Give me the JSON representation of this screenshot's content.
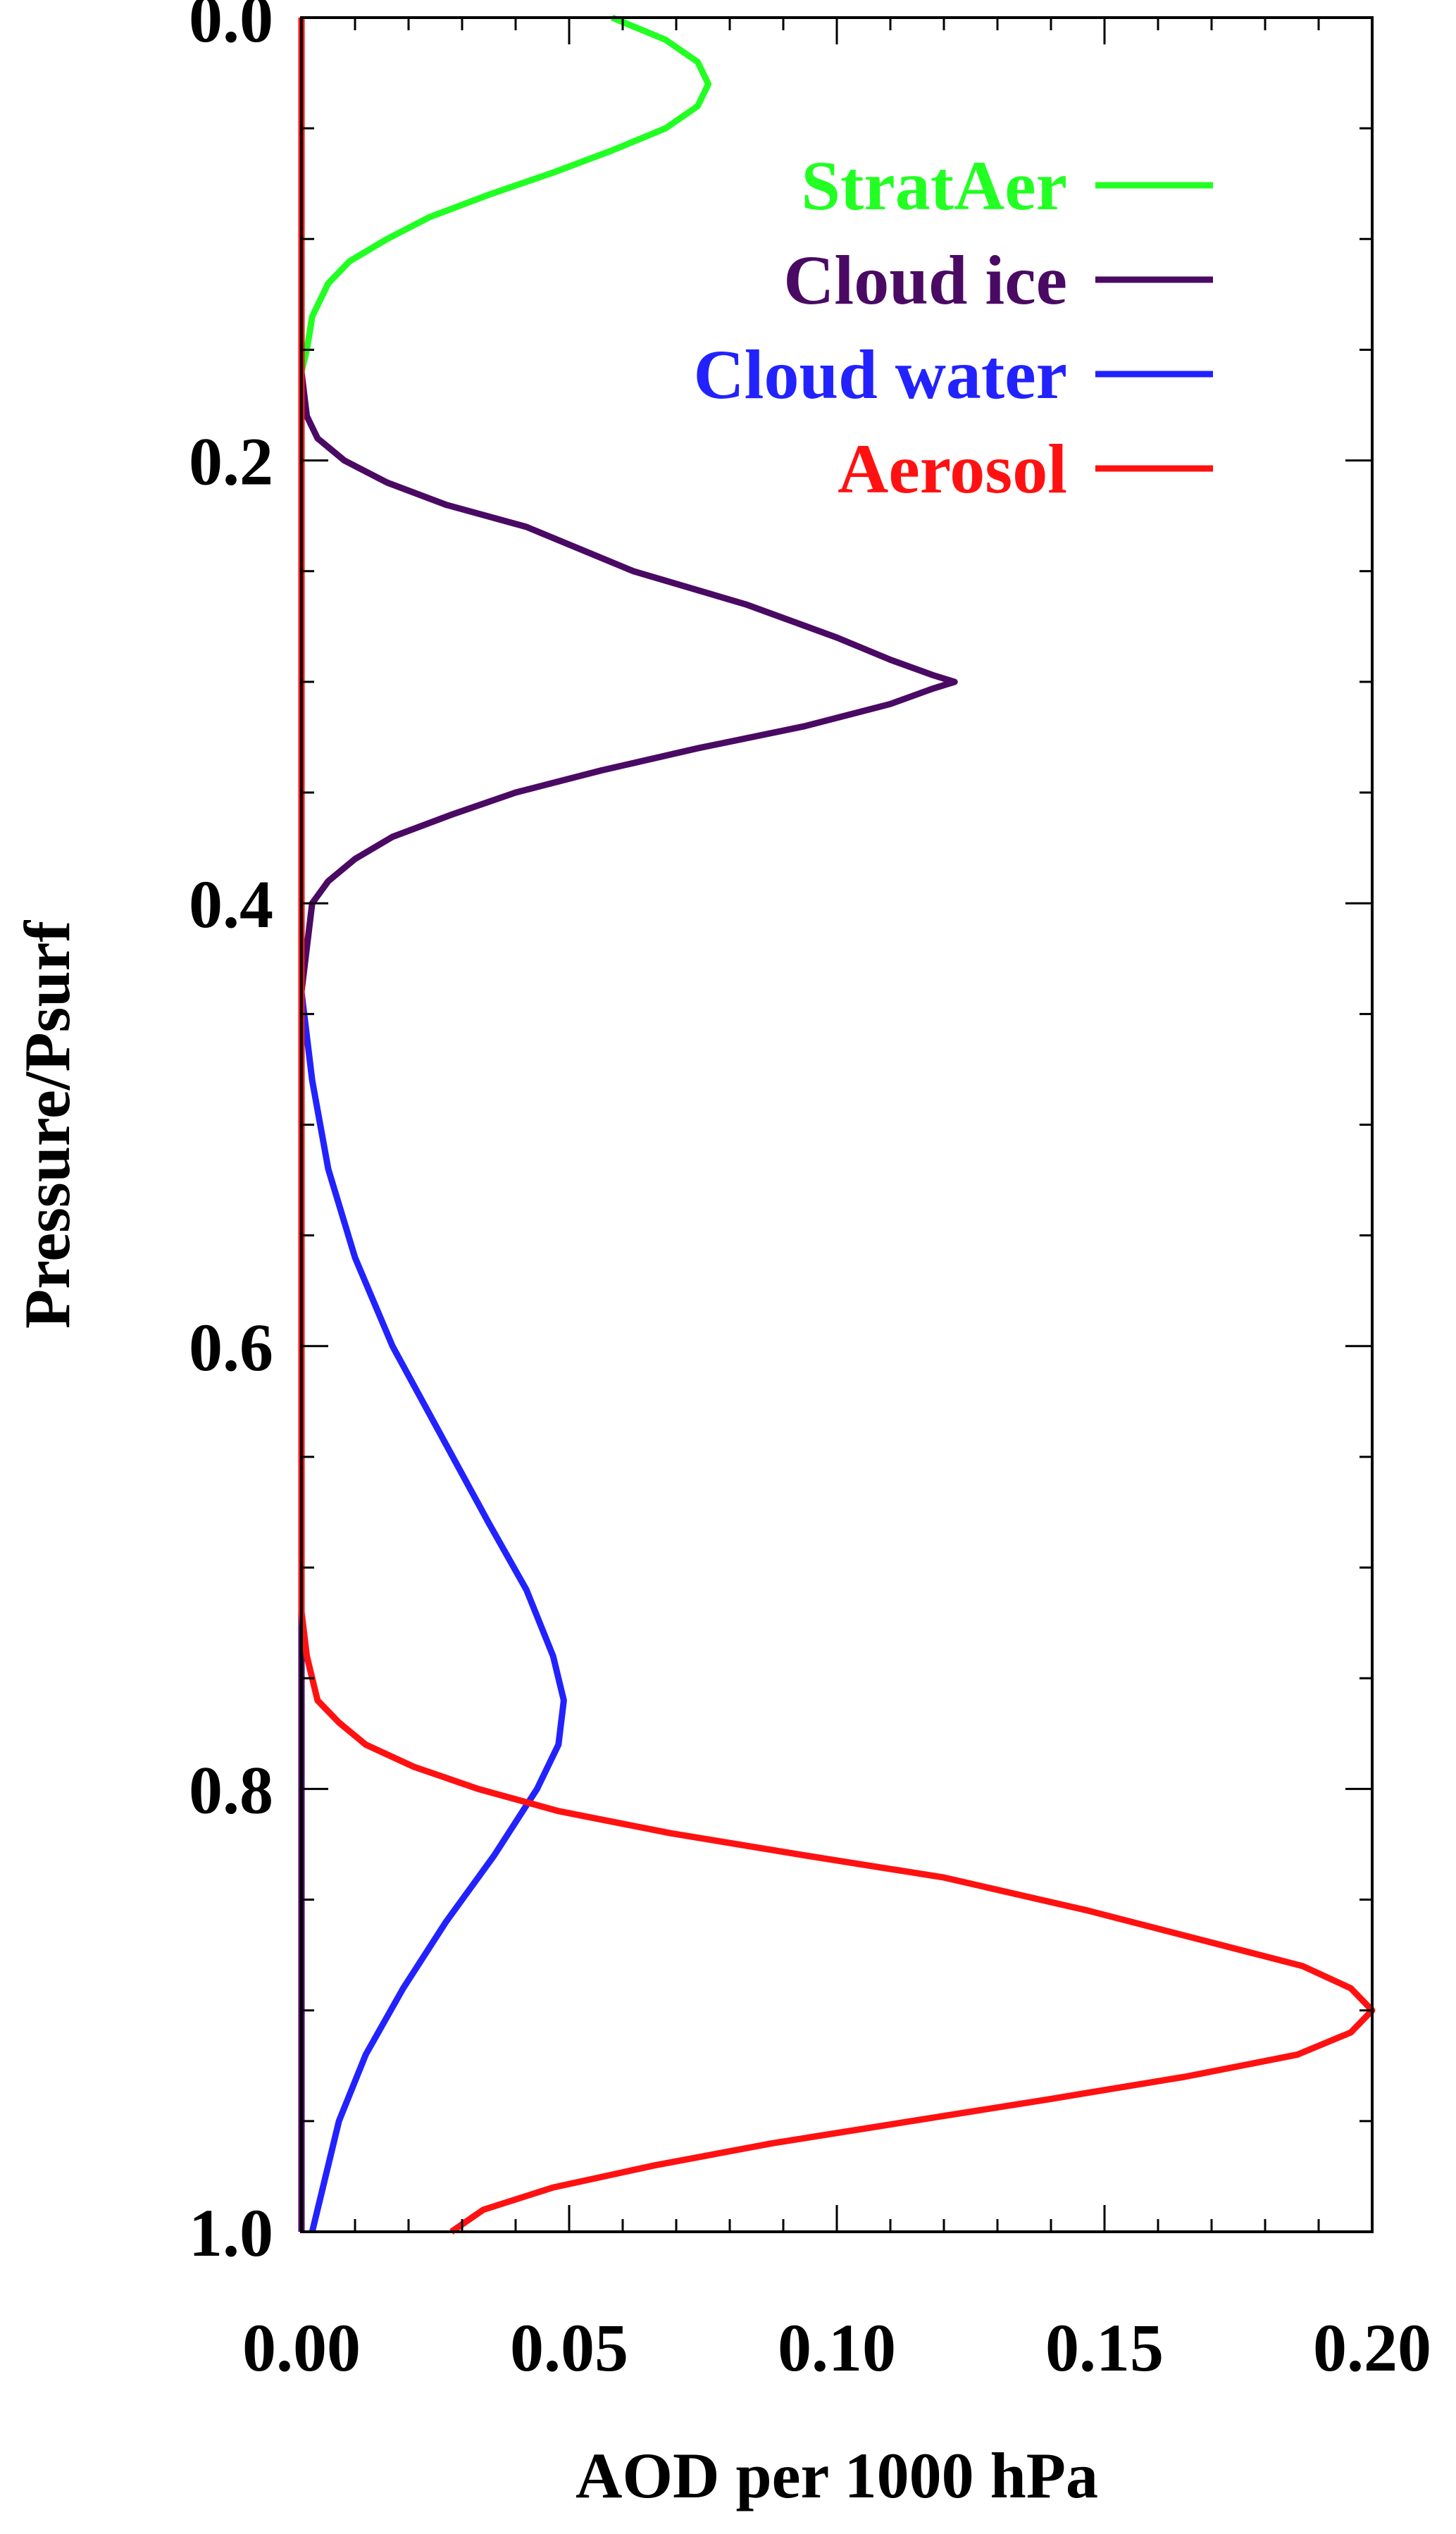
{
  "chart_data": {
    "type": "line",
    "title": "",
    "xlabel": "AOD per 1000 hPa",
    "ylabel": "Pressure/Psurf",
    "xlim": [
      0.0,
      0.2
    ],
    "ylim": [
      1.0,
      0.0
    ],
    "y_inverted": true,
    "grid": false,
    "legend_placement": "top-right",
    "x_ticks": [
      "0.00",
      "0.05",
      "0.10",
      "0.15",
      "0.20"
    ],
    "y_ticks": [
      "0.0",
      "0.2",
      "0.4",
      "0.6",
      "0.8",
      "1.0"
    ],
    "series": [
      {
        "name": "StratAer",
        "color": "#22ff22",
        "points": [
          [
            0.058,
            0.0
          ],
          [
            0.068,
            0.01
          ],
          [
            0.074,
            0.02
          ],
          [
            0.076,
            0.03
          ],
          [
            0.074,
            0.04
          ],
          [
            0.068,
            0.05
          ],
          [
            0.058,
            0.06
          ],
          [
            0.047,
            0.07
          ],
          [
            0.035,
            0.08
          ],
          [
            0.024,
            0.09
          ],
          [
            0.016,
            0.1
          ],
          [
            0.009,
            0.11
          ],
          [
            0.005,
            0.12
          ],
          [
            0.002,
            0.135
          ],
          [
            0.001,
            0.15
          ],
          [
            0.0,
            0.16
          ]
        ]
      },
      {
        "name": "Cloud ice",
        "color": "#4a0a64",
        "points": [
          [
            0.0,
            0.16
          ],
          [
            0.001,
            0.18
          ],
          [
            0.003,
            0.19
          ],
          [
            0.008,
            0.2
          ],
          [
            0.016,
            0.21
          ],
          [
            0.027,
            0.22
          ],
          [
            0.042,
            0.23
          ],
          [
            0.062,
            0.25
          ],
          [
            0.083,
            0.265
          ],
          [
            0.1,
            0.28
          ],
          [
            0.11,
            0.29
          ],
          [
            0.118,
            0.297
          ],
          [
            0.122,
            0.3
          ],
          [
            0.118,
            0.303
          ],
          [
            0.11,
            0.31
          ],
          [
            0.094,
            0.32
          ],
          [
            0.074,
            0.33
          ],
          [
            0.056,
            0.34
          ],
          [
            0.04,
            0.35
          ],
          [
            0.028,
            0.36
          ],
          [
            0.017,
            0.37
          ],
          [
            0.01,
            0.38
          ],
          [
            0.005,
            0.39
          ],
          [
            0.002,
            0.4
          ],
          [
            0.001,
            0.42
          ],
          [
            0.0,
            0.44
          ],
          [
            0.0,
            1.0
          ]
        ]
      },
      {
        "name": "Cloud water",
        "color": "#2222ff",
        "points": [
          [
            0.0,
            0.44
          ],
          [
            0.002,
            0.48
          ],
          [
            0.005,
            0.52
          ],
          [
            0.01,
            0.56
          ],
          [
            0.017,
            0.6
          ],
          [
            0.026,
            0.64
          ],
          [
            0.035,
            0.68
          ],
          [
            0.042,
            0.71
          ],
          [
            0.047,
            0.74
          ],
          [
            0.049,
            0.76
          ],
          [
            0.048,
            0.78
          ],
          [
            0.044,
            0.8
          ],
          [
            0.036,
            0.83
          ],
          [
            0.027,
            0.86
          ],
          [
            0.019,
            0.89
          ],
          [
            0.012,
            0.92
          ],
          [
            0.007,
            0.95
          ],
          [
            0.004,
            0.98
          ],
          [
            0.002,
            1.0
          ]
        ]
      },
      {
        "name": "Aerosol",
        "color": "#ff1111",
        "points": [
          [
            0.0,
            0.0
          ],
          [
            0.0,
            0.72
          ],
          [
            0.001,
            0.74
          ],
          [
            0.003,
            0.76
          ],
          [
            0.007,
            0.77
          ],
          [
            0.012,
            0.78
          ],
          [
            0.021,
            0.79
          ],
          [
            0.033,
            0.8
          ],
          [
            0.048,
            0.81
          ],
          [
            0.069,
            0.82
          ],
          [
            0.094,
            0.83
          ],
          [
            0.12,
            0.84
          ],
          [
            0.147,
            0.855
          ],
          [
            0.171,
            0.87
          ],
          [
            0.187,
            0.88
          ],
          [
            0.196,
            0.89
          ],
          [
            0.2,
            0.9
          ],
          [
            0.196,
            0.91
          ],
          [
            0.186,
            0.92
          ],
          [
            0.165,
            0.93
          ],
          [
            0.14,
            0.94
          ],
          [
            0.114,
            0.95
          ],
          [
            0.088,
            0.96
          ],
          [
            0.066,
            0.97
          ],
          [
            0.047,
            0.98
          ],
          [
            0.034,
            0.99
          ],
          [
            0.028,
            1.0
          ]
        ]
      }
    ]
  }
}
